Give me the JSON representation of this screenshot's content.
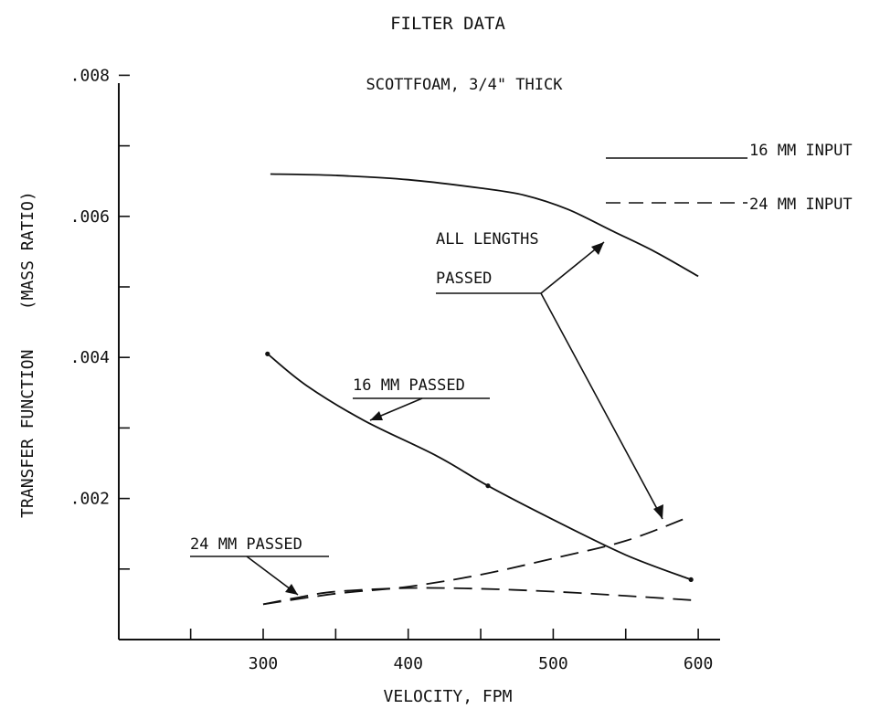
{
  "chart_data": {
    "type": "line",
    "title": "FILTER DATA",
    "subtitle": "SCOTTFOAM, 3/4\" THICK",
    "xlabel": "VELOCITY, FPM",
    "ylabel": "TRANSFER FUNCTION    (MASS RATIO)",
    "xlim": [
      200,
      610
    ],
    "ylim": [
      0,
      0.008
    ],
    "x_ticks": [
      300,
      400,
      500,
      600
    ],
    "x_tick_labels": [
      "300",
      "400",
      "500",
      "600"
    ],
    "y_ticks": [
      0.002,
      0.004,
      0.006,
      0.008
    ],
    "y_tick_labels": [
      ".002",
      ".004",
      ".006",
      ".008"
    ],
    "grid": false,
    "series": [
      {
        "name": "16 MM INPUT",
        "style": "solid",
        "x": [
          305,
          350,
          400,
          450,
          480,
          510,
          540,
          570,
          600
        ],
        "y": [
          0.0066,
          0.00658,
          0.00652,
          0.0064,
          0.0063,
          0.0061,
          0.0058,
          0.0055,
          0.00515
        ]
      },
      {
        "name": "24 MM INPUT",
        "style": "dashed",
        "x": [
          300,
          325,
          350,
          400,
          450,
          500,
          550,
          595
        ],
        "y": [
          0.0005,
          0.0006,
          0.00068,
          0.00073,
          0.00072,
          0.00068,
          0.00062,
          0.00056
        ]
      },
      {
        "name": "16 MM PASSED",
        "style": "solid",
        "markers": true,
        "x": [
          303,
          330,
          370,
          420,
          455,
          500,
          550,
          595
        ],
        "y": [
          0.00405,
          0.0036,
          0.0031,
          0.0026,
          0.00218,
          0.0017,
          0.0012,
          0.00085
        ]
      },
      {
        "name": "24 MM PASSED",
        "style": "dashed",
        "x": [
          300,
          350,
          400,
          450,
          500,
          550,
          595
        ],
        "y": [
          0.0005,
          0.00065,
          0.00075,
          0.00092,
          0.00115,
          0.0014,
          0.00175
        ]
      }
    ],
    "legend": {
      "position": "top-right",
      "entries": [
        {
          "label": "16 MM INPUT",
          "style": "solid"
        },
        {
          "label": "24 MM INPUT",
          "style": "dashed"
        }
      ]
    },
    "annotations": [
      {
        "id": "all-lengths",
        "lines": [
          "ALL LENGTHS",
          "PASSED"
        ]
      },
      {
        "id": "16mm-passed",
        "lines": [
          "16 MM PASSED"
        ]
      },
      {
        "id": "24mm-passed",
        "lines": [
          "24 MM PASSED"
        ]
      }
    ]
  }
}
